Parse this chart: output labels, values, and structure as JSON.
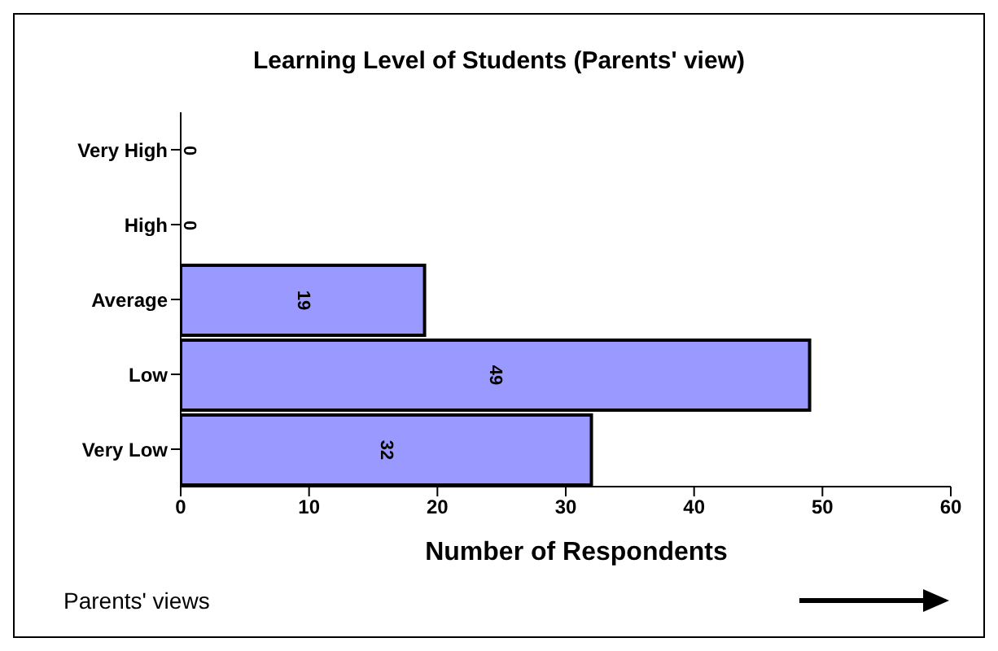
{
  "chart_data": {
    "type": "bar",
    "orientation": "horizontal",
    "title": "Learning Level of Students (Parents' view)",
    "xlabel": "Number of Respondents",
    "categories": [
      "Very High",
      "High",
      "Average",
      "Low",
      "Very Low"
    ],
    "values": [
      0,
      0,
      19,
      49,
      32
    ],
    "color": "#9999ff",
    "xlim": [
      0,
      60
    ],
    "xticks": [
      0,
      10,
      20,
      30,
      40,
      50,
      60
    ],
    "grid": false,
    "data_labels": true,
    "annotations": [
      "Parents' views"
    ]
  }
}
